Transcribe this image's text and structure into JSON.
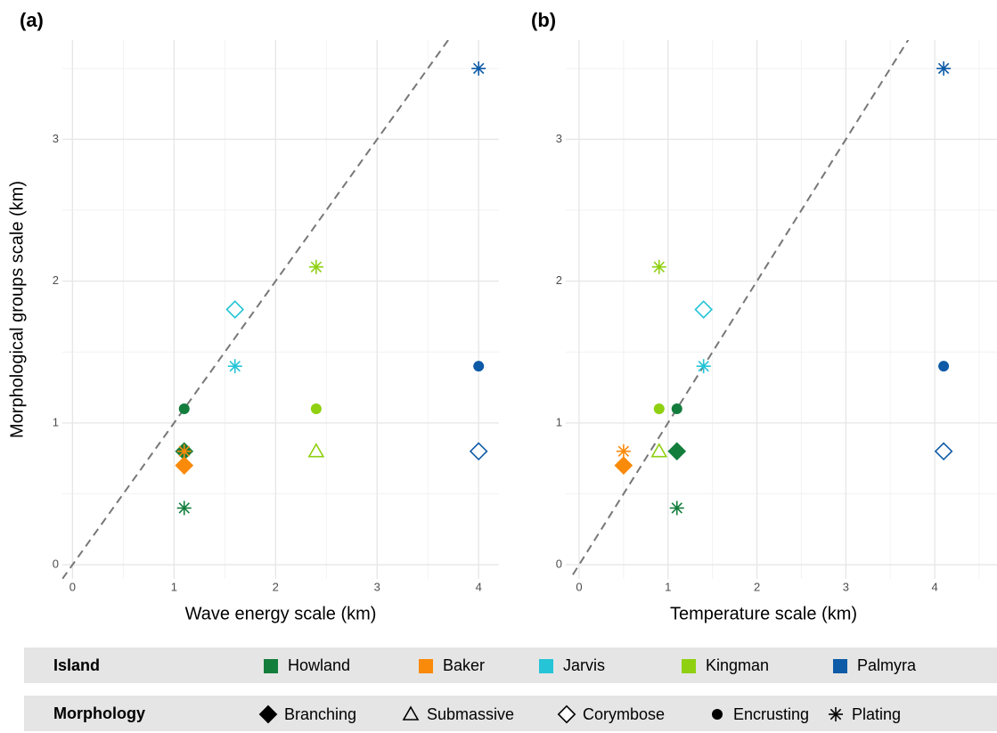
{
  "chart_data": [
    {
      "type": "scatter",
      "panel_label": "(a)",
      "x_label": "Wave energy scale (km)",
      "y_label": "Morphological groups scale (km)",
      "xlim": [
        -0.1,
        4.2
      ],
      "ylim": [
        -0.1,
        3.7
      ],
      "xticks": [
        0,
        1,
        2,
        3,
        4
      ],
      "yticks": [
        0,
        1,
        2,
        3
      ],
      "x_minor_ticks": [
        0.5,
        1.5,
        2.5,
        3.5
      ],
      "y_minor_ticks": [
        0.5,
        1.5,
        2.5,
        3.5
      ],
      "grid": true,
      "points": [
        {
          "island": "Howland",
          "morphology": "Encrusting",
          "x": 1.1,
          "y": 1.1
        },
        {
          "island": "Howland",
          "morphology": "Branching",
          "x": 1.1,
          "y": 0.8
        },
        {
          "island": "Howland",
          "morphology": "Plating",
          "x": 1.1,
          "y": 0.4
        },
        {
          "island": "Baker",
          "morphology": "Branching",
          "x": 1.1,
          "y": 0.7
        },
        {
          "island": "Baker",
          "morphology": "Plating",
          "x": 1.1,
          "y": 0.8
        },
        {
          "island": "Jarvis",
          "morphology": "Corymbose",
          "x": 1.6,
          "y": 1.8
        },
        {
          "island": "Jarvis",
          "morphology": "Plating",
          "x": 1.6,
          "y": 1.4
        },
        {
          "island": "Kingman",
          "morphology": "Plating",
          "x": 2.4,
          "y": 2.1
        },
        {
          "island": "Kingman",
          "morphology": "Encrusting",
          "x": 2.4,
          "y": 1.1
        },
        {
          "island": "Kingman",
          "morphology": "Submassive",
          "x": 2.4,
          "y": 0.8
        },
        {
          "island": "Palmyra",
          "morphology": "Plating",
          "x": 4.0,
          "y": 3.5
        },
        {
          "island": "Palmyra",
          "morphology": "Encrusting",
          "x": 4.0,
          "y": 1.4
        },
        {
          "island": "Palmyra",
          "morphology": "Corymbose",
          "x": 4.0,
          "y": 0.8
        }
      ]
    },
    {
      "type": "scatter",
      "panel_label": "(b)",
      "x_label": "Temperature scale (km)",
      "xlim": [
        -0.15,
        4.7
      ],
      "ylim": [
        -0.1,
        3.7
      ],
      "xticks": [
        0,
        1,
        2,
        3,
        4
      ],
      "yticks": [
        0,
        1,
        2,
        3
      ],
      "x_minor_ticks": [
        0.5,
        1.5,
        2.5,
        3.5,
        4.5
      ],
      "y_minor_ticks": [
        0.5,
        1.5,
        2.5,
        3.5
      ],
      "grid": true,
      "points": [
        {
          "island": "Howland",
          "morphology": "Encrusting",
          "x": 1.1,
          "y": 1.1
        },
        {
          "island": "Howland",
          "morphology": "Branching",
          "x": 1.1,
          "y": 0.8
        },
        {
          "island": "Howland",
          "morphology": "Plating",
          "x": 1.1,
          "y": 0.4
        },
        {
          "island": "Baker",
          "morphology": "Branching",
          "x": 0.5,
          "y": 0.7
        },
        {
          "island": "Baker",
          "morphology": "Plating",
          "x": 0.5,
          "y": 0.8
        },
        {
          "island": "Jarvis",
          "morphology": "Corymbose",
          "x": 1.4,
          "y": 1.8
        },
        {
          "island": "Jarvis",
          "morphology": "Plating",
          "x": 1.4,
          "y": 1.4
        },
        {
          "island": "Kingman",
          "morphology": "Plating",
          "x": 0.9,
          "y": 2.1
        },
        {
          "island": "Kingman",
          "morphology": "Encrusting",
          "x": 0.9,
          "y": 1.1
        },
        {
          "island": "Kingman",
          "morphology": "Submassive",
          "x": 0.9,
          "y": 0.8
        },
        {
          "island": "Palmyra",
          "morphology": "Plating",
          "x": 4.1,
          "y": 3.5
        },
        {
          "island": "Palmyra",
          "morphology": "Encrusting",
          "x": 4.1,
          "y": 1.4
        },
        {
          "island": "Palmyra",
          "morphology": "Corymbose",
          "x": 4.1,
          "y": 0.8
        }
      ]
    }
  ],
  "legend": {
    "island_title": "Island",
    "islands": [
      {
        "name": "Howland",
        "color": "#137d3c"
      },
      {
        "name": "Baker",
        "color": "#f98a0a"
      },
      {
        "name": "Jarvis",
        "color": "#25c4d6"
      },
      {
        "name": "Kingman",
        "color": "#8fd011"
      },
      {
        "name": "Palmyra",
        "color": "#0d5aa7"
      }
    ],
    "morphology_title": "Morphology",
    "morphologies": [
      {
        "name": "Branching",
        "shape": "filled-diamond"
      },
      {
        "name": "Submassive",
        "shape": "open-triangle"
      },
      {
        "name": "Corymbose",
        "shape": "open-diamond"
      },
      {
        "name": "Encrusting",
        "shape": "filled-circle"
      },
      {
        "name": "Plating",
        "shape": "asterisk"
      }
    ]
  }
}
